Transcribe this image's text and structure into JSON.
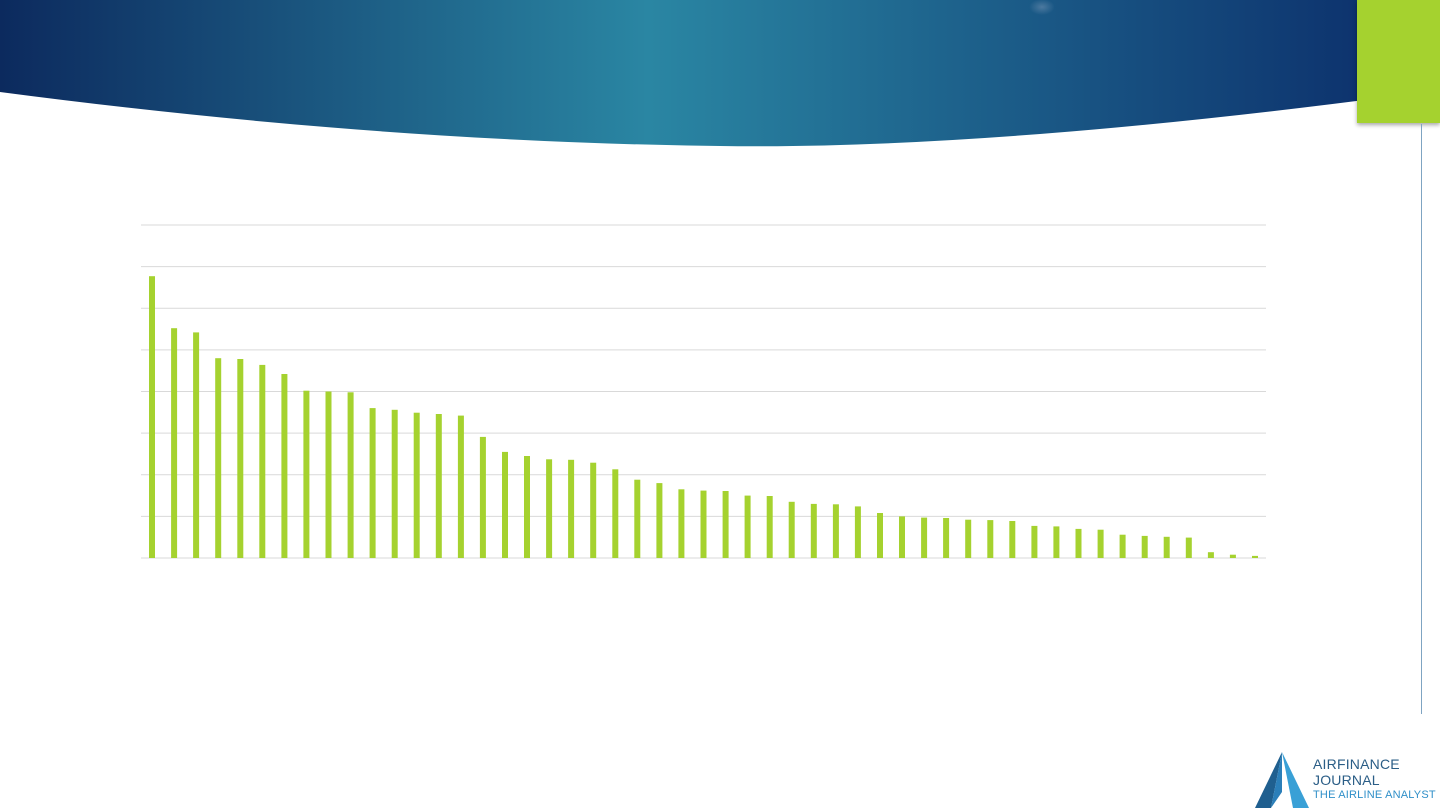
{
  "slide": {
    "accent_color": "#a5d22f",
    "banner_colors": [
      "#0c2a5e",
      "#2a86a3",
      "#0a2a68"
    ]
  },
  "logo": {
    "line1": "AIRFINANCE",
    "line2": "JOURNAL",
    "line3": "THE AIRLINE ANALYST",
    "icon": "airfinance-journal-logo-icon"
  },
  "chart_data": {
    "type": "bar",
    "title": "",
    "xlabel": "",
    "ylabel": "",
    "ylim": [
      0,
      8
    ],
    "gridlines": 8,
    "grid": true,
    "legend": "none",
    "bar_color": "#a5d22f",
    "values": [
      6.77,
      5.52,
      5.42,
      4.8,
      4.78,
      4.64,
      4.42,
      4.02,
      4.0,
      3.98,
      3.6,
      3.56,
      3.49,
      3.46,
      3.42,
      2.91,
      2.55,
      2.45,
      2.37,
      2.36,
      2.29,
      2.13,
      1.88,
      1.8,
      1.65,
      1.62,
      1.61,
      1.5,
      1.49,
      1.35,
      1.3,
      1.29,
      1.24,
      1.08,
      1.0,
      0.97,
      0.96,
      0.92,
      0.91,
      0.89,
      0.77,
      0.76,
      0.7,
      0.68,
      0.56,
      0.53,
      0.51,
      0.49,
      0.14,
      0.08,
      0.05
    ]
  }
}
